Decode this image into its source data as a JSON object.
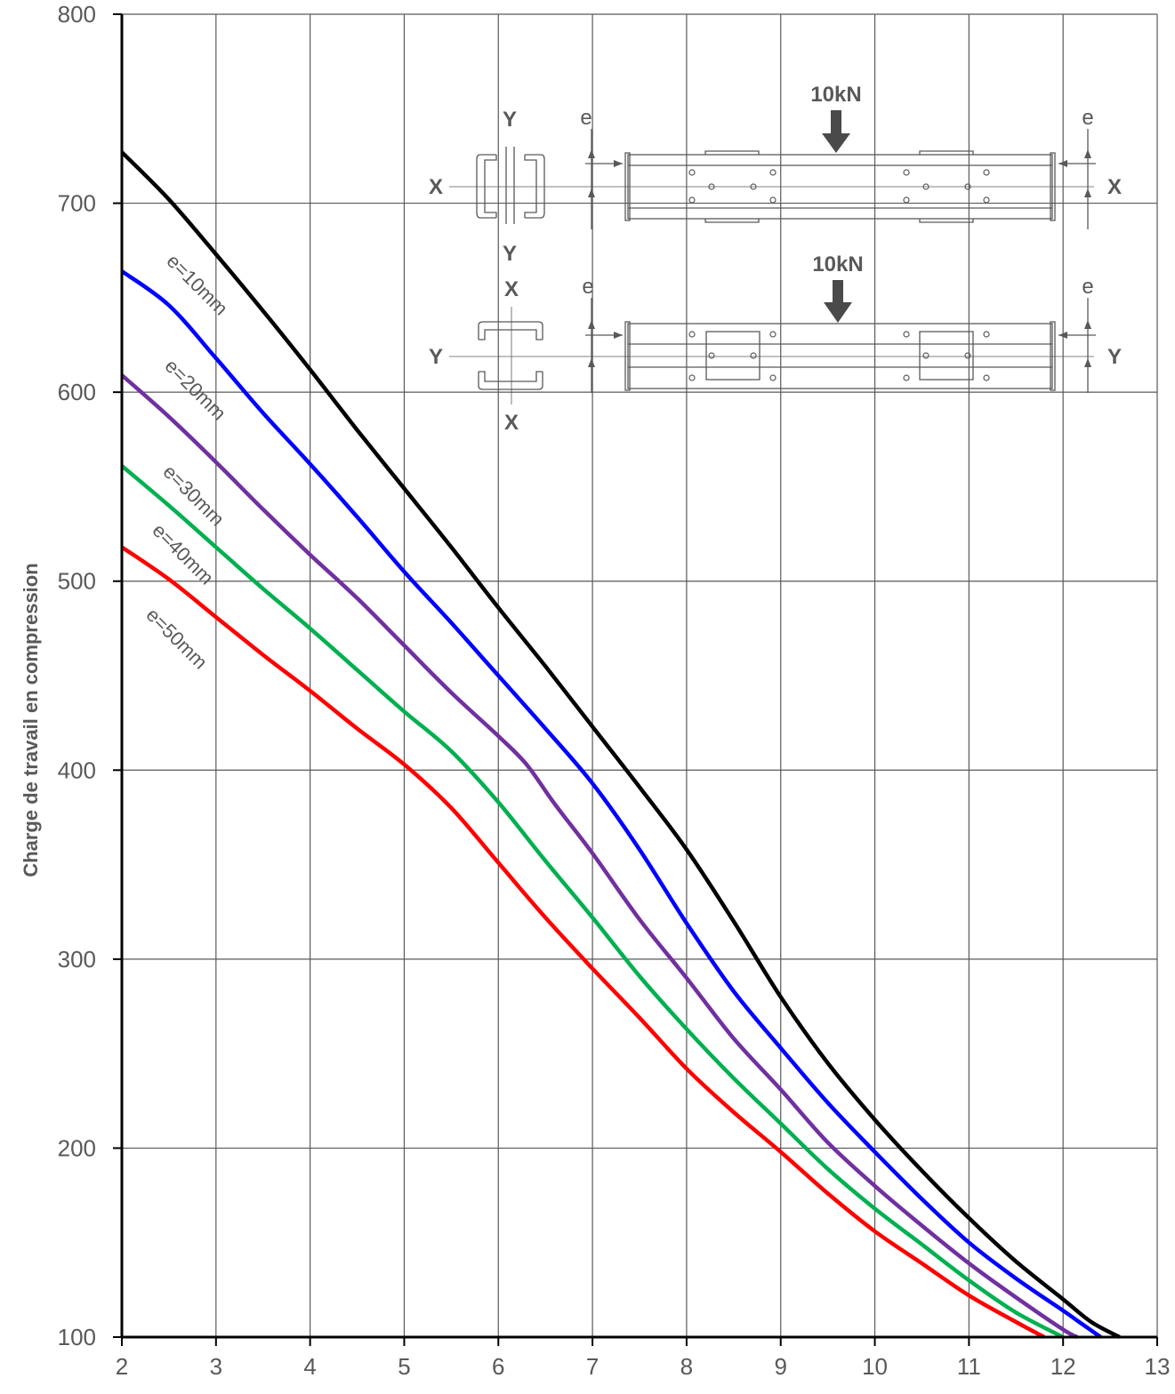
{
  "chart_data": {
    "type": "line",
    "title": "",
    "xlabel": "",
    "ylabel": "Charge de travail en compression",
    "xlim": [
      2,
      13
    ],
    "ylim": [
      100,
      800
    ],
    "x_ticks": [
      "2",
      "3",
      "4",
      "5",
      "6",
      "7",
      "8",
      "9",
      "10",
      "11",
      "12",
      "13"
    ],
    "y_ticks": [
      "100",
      "200",
      "300",
      "400",
      "500",
      "600",
      "700",
      "800"
    ],
    "grid": true,
    "series": [
      {
        "name": "",
        "color": "#000000",
        "x": [
          2,
          2.5,
          3,
          3.5,
          4,
          4.5,
          5,
          5.5,
          6,
          6.5,
          7,
          7.5,
          8,
          8.5,
          9,
          9.5,
          10,
          10.5,
          11,
          11.5,
          12,
          12.3,
          12.6
        ],
        "values": [
          727,
          702,
          673,
          643,
          612,
          580,
          549,
          518,
          486,
          455,
          423,
          391,
          358,
          320,
          280,
          245,
          215,
          188,
          163,
          140,
          120,
          108,
          100
        ]
      },
      {
        "name": "e=10mm",
        "color": "#0000ff",
        "x": [
          2,
          2.5,
          3,
          3.5,
          4,
          4.5,
          5,
          5.5,
          6,
          6.5,
          7,
          7.5,
          8,
          8.5,
          9,
          9.5,
          10,
          10.5,
          11,
          11.5,
          12,
          12.2,
          12.4
        ],
        "values": [
          664,
          646,
          618,
          589,
          562,
          534,
          505,
          478,
          450,
          422,
          393,
          358,
          319,
          283,
          253,
          224,
          198,
          173,
          150,
          131,
          114,
          107,
          100
        ]
      },
      {
        "name": "e=20mm",
        "color": "#7030a0",
        "x": [
          2,
          2.5,
          3,
          3.5,
          4,
          4.5,
          5,
          5.5,
          6,
          6.3,
          6.6,
          7,
          7.5,
          8,
          8.5,
          9,
          9.5,
          10,
          10.5,
          11,
          11.5,
          12,
          12.15
        ],
        "values": [
          609,
          587,
          563,
          538,
          514,
          491,
          466,
          441,
          418,
          403,
          382,
          356,
          321,
          290,
          258,
          231,
          203,
          180,
          159,
          139,
          121,
          104,
          100
        ]
      },
      {
        "name": "e=30mm",
        "color": "#00b050",
        "x": [
          2,
          2.5,
          3,
          3.5,
          4,
          4.5,
          5,
          5.5,
          6,
          6.5,
          7,
          7.5,
          8,
          8.5,
          9,
          9.5,
          10,
          10.5,
          11,
          11.5,
          12
        ],
        "values": [
          561,
          540,
          518,
          496,
          475,
          453,
          431,
          410,
          383,
          352,
          322,
          291,
          263,
          237,
          213,
          189,
          168,
          149,
          130,
          113,
          100
        ]
      },
      {
        "name": "e=40mm",
        "color": "",
        "x": [],
        "values": []
      },
      {
        "name": "e=50mm",
        "color": "#ff0000",
        "x": [
          2,
          2.5,
          3,
          3.5,
          4,
          4.5,
          5,
          5.5,
          6,
          6.5,
          7,
          7.5,
          8,
          8.5,
          9,
          9.5,
          10,
          10.5,
          11,
          11.5,
          11.8
        ],
        "values": [
          518,
          501,
          481,
          461,
          442,
          422,
          403,
          380,
          351,
          322,
          295,
          269,
          242,
          219,
          198,
          176,
          156,
          139,
          122,
          108,
          100
        ]
      }
    ],
    "annotations": {
      "load": "10kN",
      "axis_x": "X",
      "axis_y": "Y",
      "eccentricity": "e"
    }
  }
}
